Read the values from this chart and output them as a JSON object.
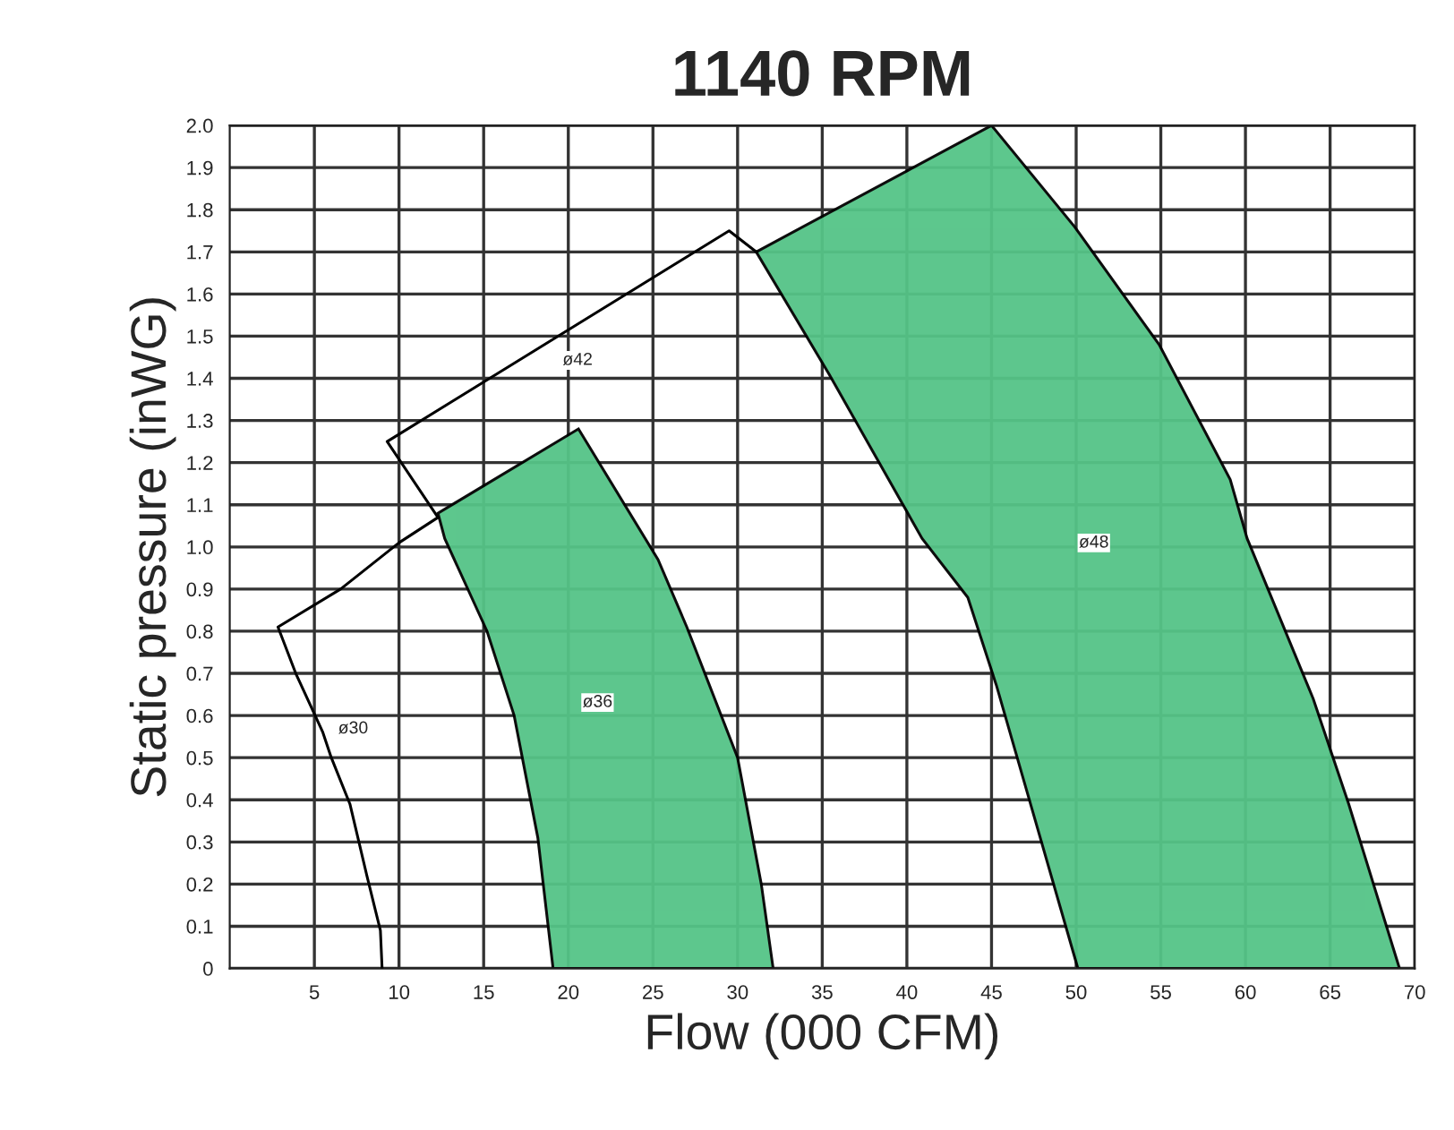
{
  "chart_data": {
    "type": "area",
    "title": "1140 RPM",
    "xlabel": "Flow (000 CFM)",
    "ylabel": "Static pressure (inWG)",
    "series": [
      {
        "name": "ø30",
        "type": "line",
        "color": "#000000",
        "x": [
          9.0,
          8.9,
          8.1,
          7.1,
          6.0,
          5.5,
          3.9,
          2.85,
          6.55,
          10.0,
          12.3
        ],
        "values": [
          0,
          0.09,
          0.22,
          0.39,
          0.5,
          0.56,
          0.7,
          0.81,
          0.9,
          1.01,
          1.07
        ]
      },
      {
        "name": "ø36",
        "color": "#55c487",
        "x": [
          19.1,
          18.2,
          16.8,
          15.2,
          12.7,
          12.3,
          20.6,
          25.3,
          27.0,
          30.0,
          31.4,
          32.1
        ],
        "values": [
          0,
          0.31,
          0.6,
          0.8,
          1.02,
          1.08,
          1.28,
          0.97,
          0.81,
          0.5,
          0.2,
          0
        ]
      },
      {
        "name": "ø42",
        "type": "line",
        "color": "#000000",
        "x": [
          12.3,
          9.3,
          29.5,
          31.1
        ],
        "values": [
          1.07,
          1.25,
          1.75,
          1.7
        ]
      },
      {
        "name": "ø48",
        "color": "#55c487",
        "x": [
          50.1,
          45.3,
          43.6,
          40.9,
          35.4,
          31.1,
          45.0,
          49.9,
          54.9,
          59.1,
          60.1,
          64.0,
          66.1,
          69.1
        ],
        "values": [
          0,
          0.67,
          0.88,
          1.02,
          1.41,
          1.7,
          2.0,
          1.76,
          1.48,
          1.16,
          1.02,
          0.64,
          0.39,
          0
        ]
      }
    ],
    "xlim": [
      0,
      70
    ],
    "xticks": [
      5,
      10,
      15,
      20,
      25,
      30,
      35,
      40,
      45,
      50,
      55,
      60,
      65,
      70
    ],
    "ylim": [
      0,
      2.0
    ],
    "yticks": [
      0,
      0.1,
      0.2,
      0.3,
      0.4,
      0.5,
      0.6,
      0.7,
      0.8,
      0.9,
      {
        "value": 1.0,
        "label": "1.0"
      },
      1.1,
      1.2,
      1.3,
      1.4,
      1.5,
      1.6,
      1.7,
      1.8,
      1.9,
      {
        "value": 2.0,
        "label": "2.0"
      }
    ],
    "grid": true,
    "legend": false
  }
}
